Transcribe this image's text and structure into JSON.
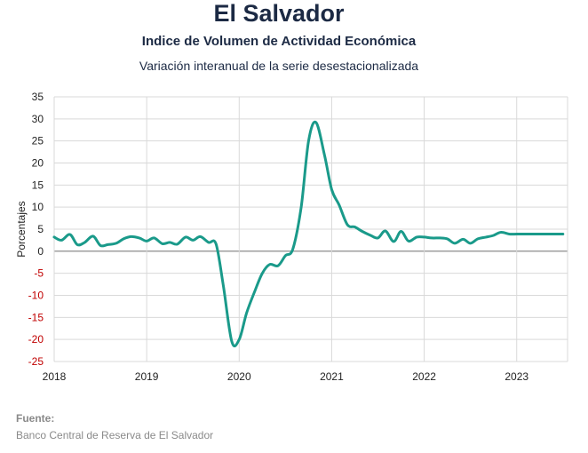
{
  "header": {
    "title": "El Salvador",
    "subtitle": "Indice de Volumen de  Actividad Económica",
    "description": "Variación interanual de la serie desestacionalizada"
  },
  "source": {
    "label": "Fuente:",
    "text": "Banco Central de Reserva de El Salvador"
  },
  "colors": {
    "line": "#1a9a8a",
    "negative_tick": "#c00000",
    "positive_tick": "#222222",
    "grid": "#d9d9d9",
    "zero_line": "#7f7f7f"
  },
  "chart_data": {
    "type": "line",
    "ylabel": "Porcentajes",
    "xlabel": "",
    "ylim": [
      -25,
      35
    ],
    "y_ticks": [
      35,
      30,
      25,
      20,
      15,
      10,
      5,
      0,
      -5,
      -10,
      -15,
      -20,
      -25
    ],
    "x_ticks": [
      "2018",
      "2019",
      "2020",
      "2021",
      "2022",
      "2023"
    ],
    "xlim": [
      2018.0,
      2023.55
    ],
    "grid": true,
    "legend": "none",
    "series": [
      {
        "x": [
          2018.0,
          2018.08,
          2018.17,
          2018.25,
          2018.33,
          2018.42,
          2018.5,
          2018.58,
          2018.67,
          2018.75,
          2018.83,
          2018.92,
          2019.0,
          2019.08,
          2019.17,
          2019.25,
          2019.33,
          2019.42,
          2019.5,
          2019.58,
          2019.67,
          2019.75,
          2019.83,
          2019.92,
          2020.0,
          2020.08,
          2020.17,
          2020.25,
          2020.33,
          2020.42,
          2020.5,
          2020.58,
          2020.67,
          2020.75,
          2020.83,
          2020.92,
          2021.0,
          2021.08,
          2021.17,
          2021.25,
          2021.33,
          2021.42,
          2021.5,
          2021.58,
          2021.67,
          2021.75,
          2021.83,
          2021.92,
          2022.0,
          2022.08,
          2022.17,
          2022.25,
          2022.33,
          2022.42,
          2022.5,
          2022.58,
          2022.67,
          2022.75,
          2022.83,
          2022.92,
          2023.0,
          2023.08,
          2023.17,
          2023.25,
          2023.33,
          2023.42,
          2023.5
        ],
        "values": [
          3.2,
          2.5,
          3.8,
          1.5,
          2.0,
          3.4,
          1.3,
          1.5,
          1.8,
          2.8,
          3.3,
          3.0,
          2.3,
          3.0,
          1.7,
          2.0,
          1.6,
          3.2,
          2.5,
          3.3,
          2.0,
          1.6,
          -8.0,
          -20.5,
          -20.0,
          -14.0,
          -9.0,
          -5.0,
          -3.0,
          -3.3,
          -1.0,
          0.5,
          10.0,
          25.0,
          29.2,
          22.0,
          14.0,
          10.5,
          6.0,
          5.5,
          4.5,
          3.6,
          3.0,
          4.6,
          2.2,
          4.5,
          2.3,
          3.2,
          3.2,
          3.0,
          3.0,
          2.8,
          1.8,
          2.7,
          1.8,
          2.8,
          3.2,
          3.6,
          4.3,
          3.9,
          3.9,
          3.9,
          3.9,
          3.9,
          3.9,
          3.9,
          3.9
        ]
      }
    ]
  }
}
